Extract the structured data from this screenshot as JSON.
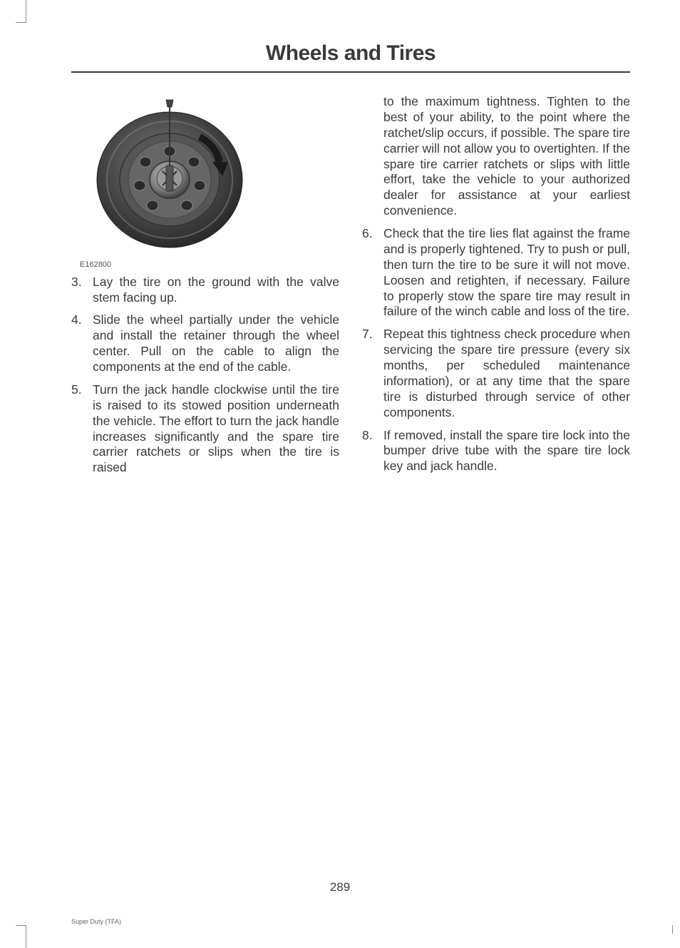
{
  "title": "Wheels and Tires",
  "figure": {
    "caption": "E162800",
    "colors": {
      "wheel_outer": "#5a5a5a",
      "wheel_shadow": "#2a2a2a",
      "hub": "#888888",
      "arrow": "#1a1a1a"
    }
  },
  "left_items": [
    {
      "n": "3.",
      "t": "Lay the tire on the ground with the valve stem facing up."
    },
    {
      "n": "4.",
      "t": "Slide the wheel partially under the vehicle and install the retainer through the wheel center. Pull on the cable to align the components at the end of the cable."
    },
    {
      "n": "5.",
      "t": "Turn the jack handle clockwise until the tire is raised to its stowed position underneath the vehicle. The effort to turn the jack handle increases significantly and the spare tire carrier ratchets or slips when the tire is raised"
    }
  ],
  "right_continuation": "to the maximum tightness. Tighten to the best of your ability, to the point where the ratchet/slip occurs, if possible. The spare tire carrier will not allow you to overtighten. If the spare tire carrier ratchets or slips with little effort, take the vehicle to your authorized dealer for assistance at your earliest convenience.",
  "right_items": [
    {
      "n": "6.",
      "t": "Check that the tire lies flat against the frame and is properly tightened. Try to push or pull, then turn the tire to be sure it will not move. Loosen and retighten, if necessary. Failure to properly stow the spare tire may result in failure of the winch cable and loss of the tire."
    },
    {
      "n": "7.",
      "t": "Repeat this tightness check procedure when servicing the spare tire pressure (every six months, per scheduled maintenance information), or at any time that the spare tire is disturbed through service of other components."
    },
    {
      "n": "8.",
      "t": "If removed, install the spare tire lock into the bumper drive tube with the spare tire lock key and jack handle."
    }
  ],
  "page_number": "289",
  "footer": "Super Duty (TFA)"
}
